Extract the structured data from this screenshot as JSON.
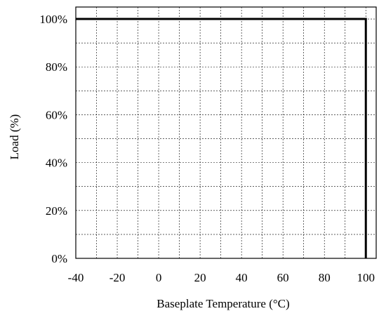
{
  "chart_data": {
    "type": "line",
    "title": "",
    "xlabel": "Baseplate Temperature (°C)",
    "ylabel": "Load (%)",
    "xlim": [
      -40,
      105
    ],
    "ylim": [
      0,
      105
    ],
    "x_ticks": [
      -40,
      -20,
      0,
      20,
      40,
      60,
      80,
      100
    ],
    "x_tick_labels": [
      "-40",
      "-20",
      "0",
      "20",
      "40",
      "60",
      "80",
      "100"
    ],
    "y_ticks": [
      0,
      20,
      40,
      60,
      80,
      100
    ],
    "y_tick_labels": [
      "0%",
      "20%",
      "40%",
      "60%",
      "80%",
      "100%"
    ],
    "grid": true,
    "grid_style": "dashed",
    "x_minor_step": 10,
    "y_minor_step": 10,
    "series": [
      {
        "x": [
          -40,
          100,
          100
        ],
        "y": [
          100,
          100,
          0
        ],
        "color": "#000000"
      }
    ]
  }
}
